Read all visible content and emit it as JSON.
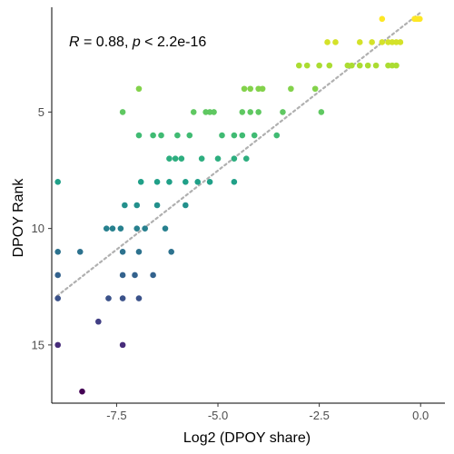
{
  "chart_data": {
    "type": "scatter",
    "xlabel": "Log2 (DPOY share)",
    "ylabel": "DPOY Rank",
    "xlim": [
      -9.1,
      0.6
    ],
    "ylim": [
      0.5,
      17.5
    ],
    "y_reversed": true,
    "grid": false,
    "legend": "none",
    "annotation": {
      "prefix": "R",
      "middle": " = 0.88, ",
      "p": "p",
      "suffix": " < 2.2e-16"
    },
    "x_ticks": [
      {
        "value": -7.5,
        "label": "-7.5"
      },
      {
        "value": -5.0,
        "label": "-5.0"
      },
      {
        "value": -2.5,
        "label": "-2.5"
      },
      {
        "value": 0.0,
        "label": "0.0"
      }
    ],
    "y_ticks": [
      {
        "value": 5,
        "label": "5"
      },
      {
        "value": 10,
        "label": "10"
      },
      {
        "value": 15,
        "label": "15"
      }
    ],
    "trend_line": {
      "x": [
        -8.97,
        -0.02
      ],
      "y": [
        12.9,
        0.75
      ],
      "color": "#b0b0b0"
    },
    "color_scale": "viridis",
    "points": [
      [
        -0.15,
        1
      ],
      [
        -0.1,
        1
      ],
      [
        -0.05,
        1
      ],
      [
        -0.02,
        1
      ],
      [
        -0.95,
        1
      ],
      [
        -0.95,
        2
      ],
      [
        -0.8,
        2
      ],
      [
        -0.7,
        2
      ],
      [
        -0.6,
        2
      ],
      [
        -1.2,
        2
      ],
      [
        -1.5,
        2
      ],
      [
        -2.1,
        2
      ],
      [
        -2.3,
        2
      ],
      [
        -0.5,
        2
      ],
      [
        -0.6,
        3
      ],
      [
        -0.7,
        3
      ],
      [
        -0.8,
        3
      ],
      [
        -1.1,
        3
      ],
      [
        -1.3,
        3
      ],
      [
        -1.5,
        3
      ],
      [
        -1.7,
        3
      ],
      [
        -1.8,
        3
      ],
      [
        -2.25,
        3
      ],
      [
        -2.5,
        3
      ],
      [
        -2.8,
        3
      ],
      [
        -3.0,
        3
      ],
      [
        -3.2,
        4
      ],
      [
        -3.9,
        4
      ],
      [
        -4.0,
        4
      ],
      [
        -4.2,
        4
      ],
      [
        -4.35,
        4
      ],
      [
        -6.95,
        4
      ],
      [
        -2.6,
        4
      ],
      [
        -2.45,
        5
      ],
      [
        -3.4,
        5
      ],
      [
        -4.0,
        5
      ],
      [
        -4.2,
        5
      ],
      [
        -4.4,
        5
      ],
      [
        -5.1,
        5
      ],
      [
        -5.2,
        5
      ],
      [
        -5.3,
        5
      ],
      [
        -5.6,
        5
      ],
      [
        -7.35,
        5
      ],
      [
        -3.55,
        6
      ],
      [
        -4.1,
        6
      ],
      [
        -4.4,
        6
      ],
      [
        -4.6,
        6
      ],
      [
        -4.9,
        6
      ],
      [
        -5.7,
        6
      ],
      [
        -6.0,
        6
      ],
      [
        -6.4,
        6
      ],
      [
        -6.6,
        6
      ],
      [
        -6.95,
        6
      ],
      [
        -4.3,
        7
      ],
      [
        -4.6,
        7
      ],
      [
        -5.0,
        7
      ],
      [
        -5.4,
        7
      ],
      [
        -5.9,
        7
      ],
      [
        -6.05,
        7
      ],
      [
        -6.2,
        7
      ],
      [
        -5.2,
        8
      ],
      [
        -5.5,
        8
      ],
      [
        -5.8,
        8
      ],
      [
        -6.2,
        8
      ],
      [
        -6.5,
        8
      ],
      [
        -6.9,
        8
      ],
      [
        -4.6,
        8
      ],
      [
        -8.95,
        8
      ],
      [
        -6.5,
        9
      ],
      [
        -7.0,
        9
      ],
      [
        -7.3,
        9
      ],
      [
        -5.8,
        9
      ],
      [
        -6.8,
        10
      ],
      [
        -7.0,
        10
      ],
      [
        -7.4,
        10
      ],
      [
        -7.75,
        10
      ],
      [
        -7.6,
        10
      ],
      [
        -6.3,
        10
      ],
      [
        -6.95,
        11
      ],
      [
        -7.35,
        11
      ],
      [
        -6.15,
        11
      ],
      [
        -8.4,
        11
      ],
      [
        -8.95,
        11
      ],
      [
        -7.05,
        12
      ],
      [
        -7.35,
        12
      ],
      [
        -8.95,
        12
      ],
      [
        -6.6,
        12
      ],
      [
        -7.7,
        13
      ],
      [
        -7.35,
        13
      ],
      [
        -6.95,
        13
      ],
      [
        -8.95,
        13
      ],
      [
        -7.95,
        14
      ],
      [
        -7.35,
        15
      ],
      [
        -8.95,
        15
      ],
      [
        -8.35,
        17
      ]
    ]
  }
}
